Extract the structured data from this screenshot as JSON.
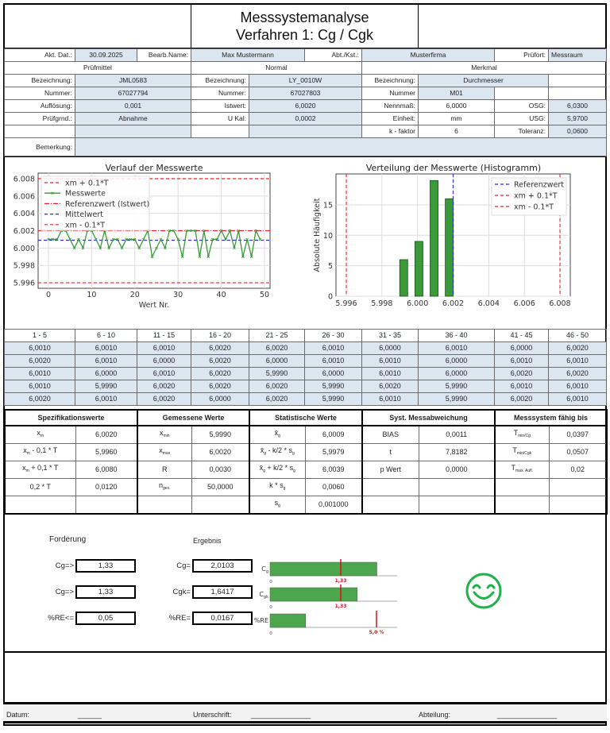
{
  "header": {
    "title_line1": "Messsystemanalyse",
    "title_line2": "Verfahren 1: Cg / Cgk"
  },
  "info": {
    "akt_dat_label": "Akt. Dat.:",
    "akt_dat": "30.09.2025",
    "bearb_label": "Bearb.Name:",
    "bearb": "Max Mustermann",
    "abt_label": "Abt./Kst.:",
    "abt": "Musterfirma",
    "pruefort_label": "Prüfort:",
    "pruefort": "Messraum",
    "pruefmittel": {
      "title": "Prüfmittel",
      "bez_label": "Bezeichnung:",
      "bez": "JML0583",
      "nr_label": "Nummer:",
      "nr": "67027794",
      "aufl_label": "Auflösung:",
      "aufl": "0,001",
      "grund_label": "Prüfgrnd.:",
      "grund": "Abnahme"
    },
    "normal": {
      "title": "Normal",
      "bez_label": "Bezeichnung:",
      "bez": "LY_0010W",
      "nr_label": "Nummer:",
      "nr": "67027803",
      "ist_label": "Istwert:",
      "ist": "6,0020",
      "ukal_label": "U Kal:",
      "ukal": "0,0002"
    },
    "merkmal": {
      "title": "Merkmal",
      "bez_label": "Bezeichnung:",
      "bez": "Durchmesser",
      "nr_label": "Nummer",
      "nr": "M01",
      "nenn_label": "Nennmaß:",
      "nenn": "6,0000",
      "einheit_label": "Einheit:",
      "einheit": "mm",
      "k_label": "k - faktor",
      "k": "6",
      "osg_label": "OSG:",
      "osg": "6,0300",
      "usg_label": "USG:",
      "usg": "5,9700",
      "tol_label": "Toleranz:",
      "tol": "0,0600"
    },
    "bemerkung_label": "Bemerkung:",
    "bemerkung": ""
  },
  "measurements": {
    "headers": [
      "1 - 5",
      "6 - 10",
      "11 - 15",
      "16 - 20",
      "21 - 25",
      "26 - 30",
      "31 - 35",
      "36 - 40",
      "41 - 45",
      "46 - 50"
    ],
    "rows": [
      [
        "6,0010",
        "6,0010",
        "6,0010",
        "6,0020",
        "6,0020",
        "6,0010",
        "6,0000",
        "6,0010",
        "6,0000",
        "6,0020"
      ],
      [
        "6,0020",
        "6,0010",
        "6,0000",
        "6,0020",
        "6,0000",
        "6,0010",
        "6,0010",
        "6,0000",
        "6,0010",
        "6,0010"
      ],
      [
        "6,0010",
        "6,0000",
        "6,0010",
        "6,0020",
        "5,9990",
        "6,0000",
        "6,0010",
        "6,0000",
        "6,0020",
        "6,0020"
      ],
      [
        "6,0010",
        "5,9990",
        "6,0020",
        "6,0020",
        "6,0020",
        "5,9990",
        "6,0020",
        "5,9990",
        "6,0010",
        "6,0010"
      ],
      [
        "6,0020",
        "6,0010",
        "6,0020",
        "6,0000",
        "6,0020",
        "5,9990",
        "6,0010",
        "5,9990",
        "6,0020",
        "6,0010"
      ]
    ]
  },
  "stats": {
    "headers": [
      "Spezifikationswerte",
      "Gemessene Werte",
      "Statistische Werte",
      "Syst. Messabweichung",
      "Messsystem fähig bis"
    ],
    "groups": [
      [
        {
          "label": [
            {
              "t": "x"
            },
            {
              "s": "m"
            }
          ],
          "value": "6,0020"
        },
        {
          "label": [
            {
              "t": "x"
            },
            {
              "s": "m"
            },
            {
              "t": " - 0,1 * T"
            }
          ],
          "value": "5,9960"
        },
        {
          "label": [
            {
              "t": "x"
            },
            {
              "s": "m"
            },
            {
              "t": " + 0,1 * T"
            }
          ],
          "value": "6,0080"
        },
        {
          "label": [
            {
              "t": "0,2 * T"
            }
          ],
          "value": "0,0120"
        },
        {
          "label": [],
          "value": ""
        }
      ],
      [
        {
          "label": [
            {
              "t": "x"
            },
            {
              "s": "min"
            }
          ],
          "value": "5,9990"
        },
        {
          "label": [
            {
              "t": "x"
            },
            {
              "s": "max"
            }
          ],
          "value": "6,0020"
        },
        {
          "label": [
            {
              "t": "R"
            }
          ],
          "value": "0,0030"
        },
        {
          "label": [
            {
              "t": "n"
            },
            {
              "s": "ges."
            }
          ],
          "value": "50,0000"
        },
        {
          "label": [],
          "value": ""
        }
      ],
      [
        {
          "label": [
            {
              "t": "x̄"
            },
            {
              "s": "g"
            }
          ],
          "value": "6,0009"
        },
        {
          "label": [
            {
              "t": "x̄"
            },
            {
              "s": "g"
            },
            {
              "t": " - k/2 * s"
            },
            {
              "s": "g"
            }
          ],
          "value": "5,9979"
        },
        {
          "label": [
            {
              "t": "x̄"
            },
            {
              "s": "g"
            },
            {
              "t": " + k/2 * s"
            },
            {
              "s": "g"
            }
          ],
          "value": "6,0039"
        },
        {
          "label": [
            {
              "t": "k * s"
            },
            {
              "s": "g"
            }
          ],
          "value": "0,0060"
        },
        {
          "label": [
            {
              "t": "s"
            },
            {
              "s": "g"
            }
          ],
          "value": "0,001000"
        }
      ],
      [
        {
          "label": [
            {
              "t": "BIAS"
            }
          ],
          "value": "0,0011"
        },
        {
          "label": [
            {
              "t": "t"
            }
          ],
          "value": "7,8182"
        },
        {
          "label": [
            {
              "t": "p Wert"
            }
          ],
          "value": "0,0000"
        },
        {
          "label": [],
          "value": ""
        },
        {
          "label": [],
          "value": ""
        }
      ],
      [
        {
          "label": [
            {
              "t": "T"
            },
            {
              "s": "min/Cg"
            }
          ],
          "value": "0,0397"
        },
        {
          "label": [
            {
              "t": "T"
            },
            {
              "s": "min/Cgk"
            }
          ],
          "value": "0,0507"
        },
        {
          "label": [
            {
              "t": "T"
            },
            {
              "s": "max. Aufl."
            }
          ],
          "value": "0,02"
        },
        {
          "label": [],
          "value": ""
        },
        {
          "label": [],
          "value": ""
        }
      ]
    ]
  },
  "evaluation": {
    "forderung_label": "Forderung",
    "ergebnis_label": "Ergebnis",
    "requirements": [
      {
        "label": "Cg=>",
        "value": "1,33"
      },
      {
        "label": "Cg=>",
        "value": "1,33"
      },
      {
        "label": "%RE<=",
        "value": "0,05"
      }
    ],
    "results": [
      {
        "label": "Cg=",
        "value": "2,0103"
      },
      {
        "label": "Cgk=",
        "value": "1,6417"
      },
      {
        "label": "%RE=",
        "value": "0,0167"
      }
    ],
    "status_icon": "smiley-happy-icon",
    "status_color": "#22b04a"
  },
  "footer": {
    "datum_label": "Datum:",
    "datum_line": "______",
    "unterschrift_label": "Unterschrift:",
    "unterschrift_line": "_______________",
    "abteilung_label": "Abteilung:",
    "abteilung_line": "_______________"
  },
  "chart_data": [
    {
      "type": "line",
      "title": "Verlauf der Messwerte",
      "xlabel": "Wert Nr.",
      "ylabel": "",
      "xlim": [
        -2.5,
        51.5
      ],
      "ylim": [
        5.9955,
        6.0086
      ],
      "xticks": [
        0,
        10,
        20,
        30,
        40,
        50
      ],
      "yticks": [
        "5.996",
        "5.998",
        "6.000",
        "6.002",
        "6.004",
        "6.006",
        "6.008"
      ],
      "grid": true,
      "legend_position": "top-left",
      "series": [
        {
          "name": "Messwerte",
          "color": "#3a9a3a",
          "y": [
            6.001,
            6.001,
            6.001,
            6.002,
            6.002,
            6.001,
            6.0,
            6.001,
            6.0,
            6.002,
            6.002,
            6.001,
            6.0,
            6.002,
            6.0,
            6.001,
            6.001,
            6.0,
            6.001,
            6.001,
            6.001,
            6.0,
            6.001,
            6.002,
            5.999,
            6.0,
            6.001,
            6.0,
            6.002,
            6.002,
            6.001,
            5.999,
            6.002,
            6.002,
            6.002,
            5.999,
            6.002,
            5.999,
            6.001,
            6.001,
            6.002,
            6.001,
            6.002,
            6.0,
            6.002,
            5.999,
            6.001,
            5.999,
            6.002,
            6.001
          ]
        }
      ],
      "reference_lines": [
        {
          "name": "xm + 0.1*T",
          "value": 6.008,
          "color": "#e8242a",
          "style": "dashed"
        },
        {
          "name": "Referenzwert (Istwert)",
          "value": 6.002,
          "color": "#e8242a",
          "style": "dashdot"
        },
        {
          "name": "Mittelwert",
          "value": 6.0009,
          "color": "#2a2ae0",
          "style": "dashed"
        },
        {
          "name": "xm - 0.1*T",
          "value": 5.996,
          "color": "#e8242a",
          "style": "dashed"
        }
      ],
      "legend_order": [
        "xm + 0.1*T",
        "Messwerte",
        "Referenzwert (Istwert)",
        "Mittelwert",
        "xm - 0.1*T"
      ]
    },
    {
      "type": "bar",
      "title": "Verteilung der Messwerte (Histogramm)",
      "xlabel": "",
      "ylabel": "Absolute Häufigkeit",
      "xlim": [
        5.9955,
        6.0085
      ],
      "ylim": [
        0,
        20
      ],
      "xticks": [
        "5.996",
        "5.998",
        "6.000",
        "6.002",
        "6.004",
        "6.006",
        "6.008"
      ],
      "yticks": [
        "0",
        "5",
        "10",
        "15"
      ],
      "grid": true,
      "legend_position": "top-right",
      "bins": [
        5.999,
        6.0,
        6.001,
        6.002
      ],
      "counts": [
        6,
        9,
        19,
        16
      ],
      "bar_color": "#3a9a3a",
      "reference_lines": [
        {
          "name": "Referenzwert",
          "value": 6.002,
          "color": "#2a2ae0",
          "style": "dashed"
        },
        {
          "name": "xm + 0.1*T",
          "value": 6.008,
          "color": "#e8242a",
          "style": "dashed"
        },
        {
          "name": "xm - 0.1*T",
          "value": 5.996,
          "color": "#e8242a",
          "style": "dashed"
        }
      ]
    },
    {
      "type": "bar",
      "orientation": "horizontal",
      "bars": [
        {
          "label": "C",
          "sub": "g",
          "value": 2.0103,
          "limit": 1.33,
          "limit_label": "1,33",
          "axis_zero": "0"
        },
        {
          "label": "C",
          "sub": "gk",
          "value": 1.6417,
          "limit": 1.33,
          "limit_label": "1,33",
          "axis_zero": "0"
        },
        {
          "label": "%RE",
          "sub": "",
          "value": 0.0167,
          "limit": 0.05,
          "limit_label": "5,0 %",
          "axis_zero": "0"
        }
      ],
      "bar_color": "#4ca64c",
      "limit_color": "#d9141c"
    }
  ]
}
